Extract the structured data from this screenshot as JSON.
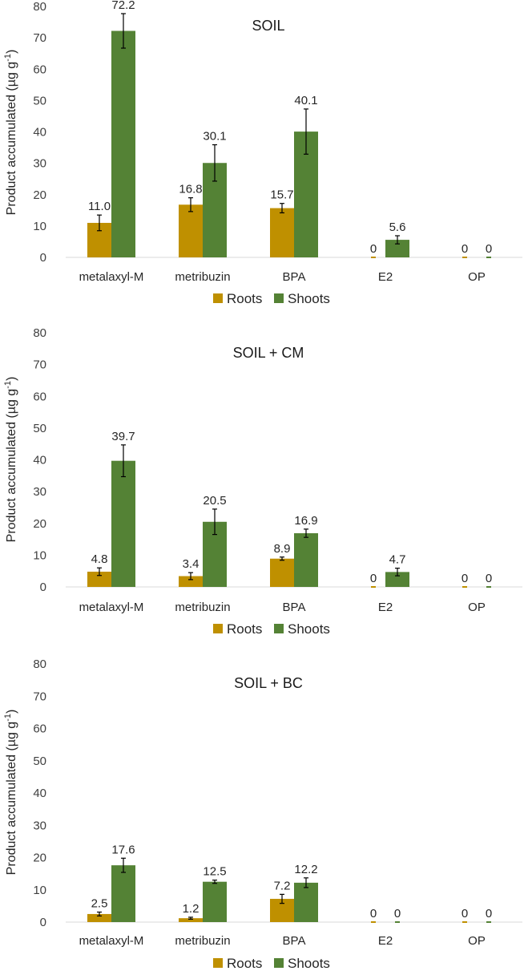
{
  "chart_data": [
    {
      "type": "bar",
      "title": "SOIL",
      "ylabel_main": "Product accumulated (µg g",
      "ylabel_sup": "-1",
      "ylabel_end": ")",
      "ylim": [
        0,
        80
      ],
      "yticks": [
        "0",
        "10",
        "20",
        "30",
        "40",
        "50",
        "60",
        "70",
        "80"
      ],
      "categories": [
        "metalaxyl-M",
        "metribuzin",
        "BPA",
        "E2",
        "OP"
      ],
      "series": [
        {
          "name": "Roots",
          "color": "#bf9000",
          "values": [
            11.0,
            16.8,
            15.7,
            0,
            0
          ],
          "errors": [
            2.5,
            2.2,
            1.5,
            0,
            0
          ],
          "labels": [
            "11.0",
            "16.8",
            "15.7",
            "0",
            "0"
          ]
        },
        {
          "name": "Shoots",
          "color": "#548235",
          "values": [
            72.2,
            30.1,
            40.1,
            5.6,
            0
          ],
          "errors": [
            5.5,
            5.8,
            7.2,
            1.3,
            0
          ],
          "labels": [
            "72.2",
            "30.1",
            "40.1",
            "5.6",
            "0"
          ]
        }
      ],
      "legend": [
        "Roots",
        "Shoots"
      ]
    },
    {
      "type": "bar",
      "title": "SOIL + CM",
      "ylabel_main": "Product accumulated (µg g",
      "ylabel_sup": "-1",
      "ylabel_end": ")",
      "ylim": [
        0,
        80
      ],
      "yticks": [
        "0",
        "10",
        "20",
        "30",
        "40",
        "50",
        "60",
        "70",
        "80"
      ],
      "categories": [
        "metalaxyl-M",
        "metribuzin",
        "BPA",
        "E2",
        "OP"
      ],
      "series": [
        {
          "name": "Roots",
          "color": "#bf9000",
          "values": [
            4.8,
            3.4,
            8.9,
            0,
            0
          ],
          "errors": [
            1.2,
            1.1,
            0.5,
            0,
            0
          ],
          "labels": [
            "4.8",
            "3.4",
            "8.9",
            "0",
            "0"
          ]
        },
        {
          "name": "Shoots",
          "color": "#548235",
          "values": [
            39.7,
            20.5,
            16.9,
            4.7,
            0
          ],
          "errors": [
            5.0,
            4.0,
            1.3,
            1.2,
            0
          ],
          "labels": [
            "39.7",
            "20.5",
            "16.9",
            "4.7",
            "0"
          ]
        }
      ],
      "legend": [
        "Roots",
        "Shoots"
      ]
    },
    {
      "type": "bar",
      "title": "SOIL + BC",
      "ylabel_main": "Product accumulated (µg g",
      "ylabel_sup": "-1",
      "ylabel_end": ")",
      "ylim": [
        0,
        80
      ],
      "yticks": [
        "0",
        "10",
        "20",
        "30",
        "40",
        "50",
        "60",
        "70",
        "80"
      ],
      "categories": [
        "metalaxyl-M",
        "metribuzin",
        "BPA",
        "E2",
        "OP"
      ],
      "series": [
        {
          "name": "Roots",
          "color": "#bf9000",
          "values": [
            2.5,
            1.2,
            7.2,
            0,
            0
          ],
          "errors": [
            0.6,
            0.3,
            1.4,
            0,
            0
          ],
          "labels": [
            "2.5",
            "1.2",
            "7.2",
            "0",
            "0"
          ]
        },
        {
          "name": "Shoots",
          "color": "#548235",
          "values": [
            17.6,
            12.5,
            12.2,
            0,
            0
          ],
          "errors": [
            2.2,
            0.5,
            1.5,
            0,
            0
          ],
          "labels": [
            "17.6",
            "12.5",
            "12.2",
            "0",
            "0"
          ]
        }
      ],
      "legend": [
        "Roots",
        "Shoots"
      ]
    }
  ]
}
